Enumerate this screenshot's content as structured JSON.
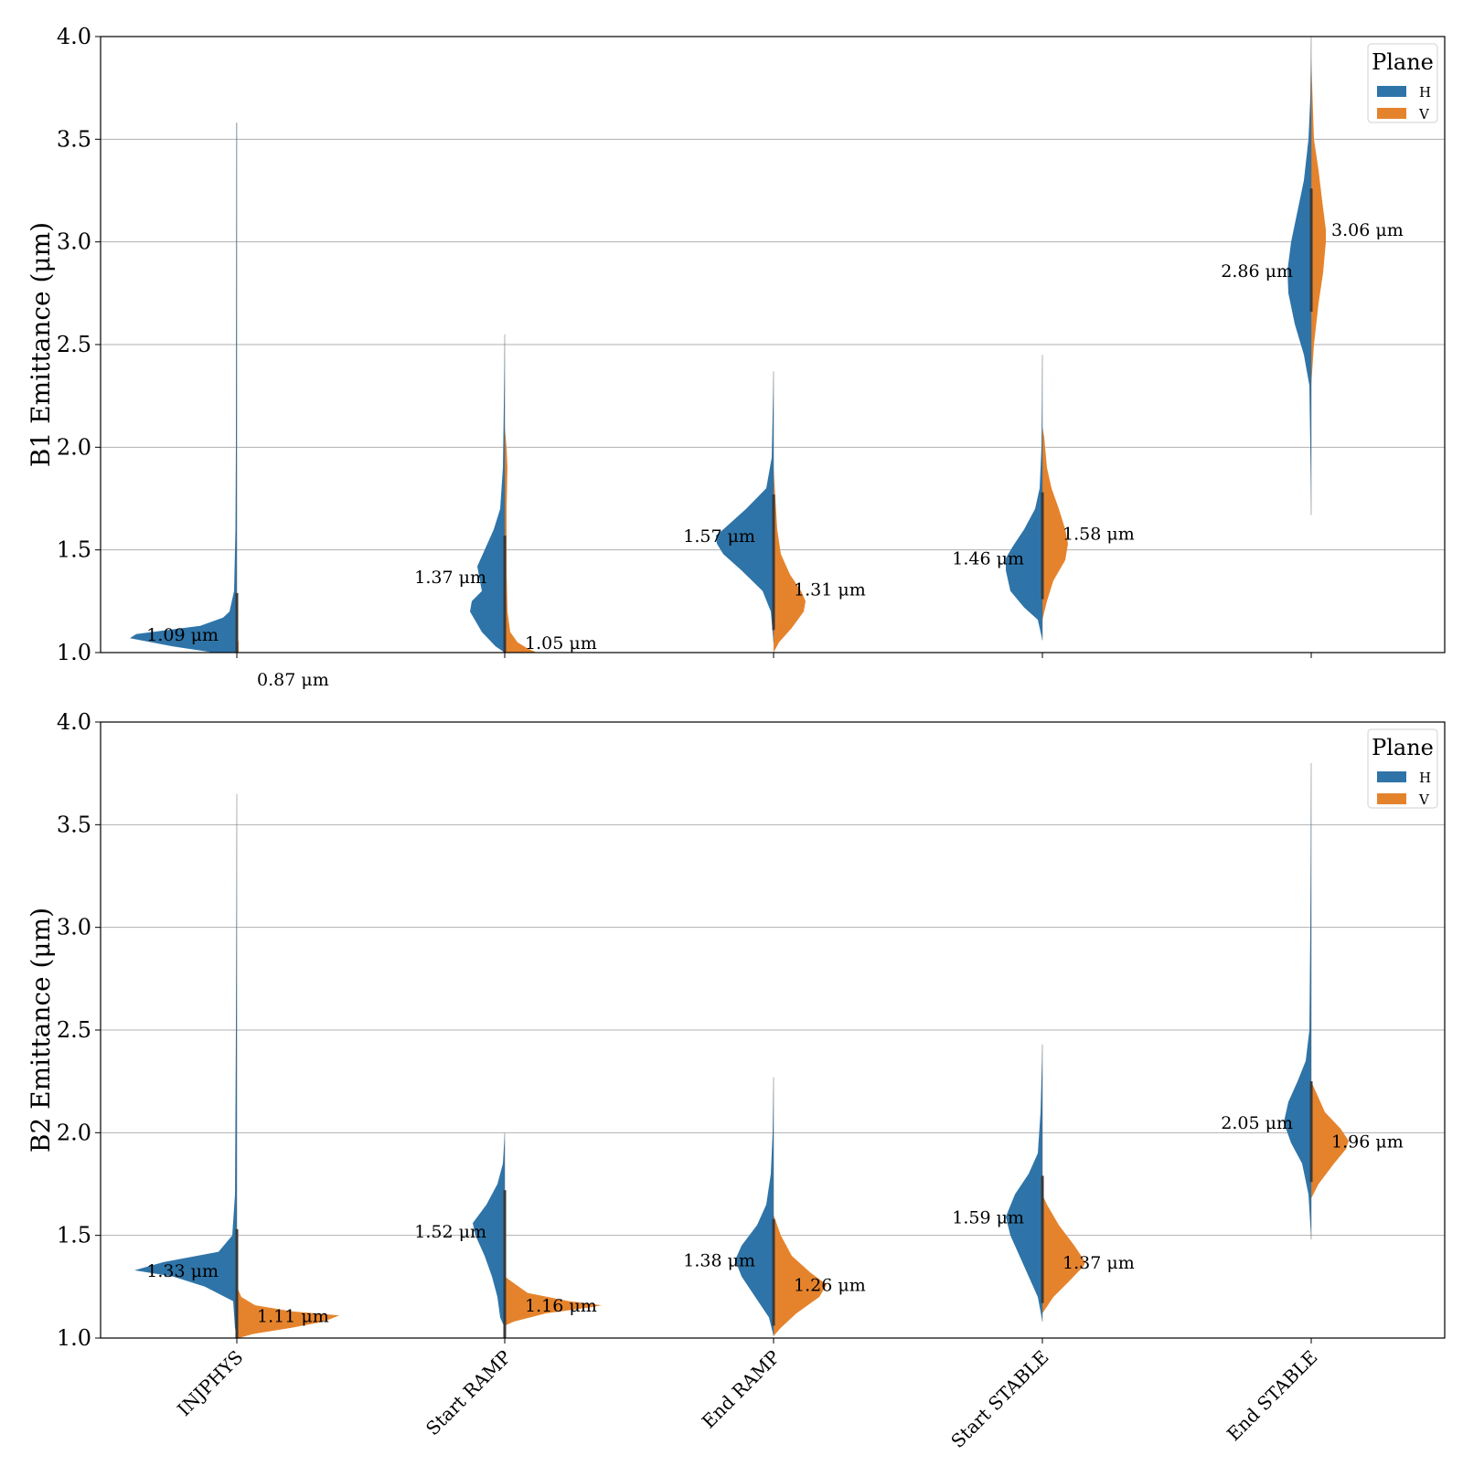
{
  "chart_data": [
    {
      "type": "violin",
      "ylabel": "B1 Emittance (μm)",
      "ylim": [
        1.0,
        4.0
      ],
      "yticks": [
        "1.0",
        "1.5",
        "2.0",
        "2.5",
        "3.0",
        "3.5",
        "4.0"
      ],
      "grid": true,
      "legend": {
        "title": "Plane",
        "placement": "top-right",
        "entries": [
          "H",
          "V"
        ]
      },
      "categories": [
        "INJPHYS",
        "Start RAMP",
        "End RAMP",
        "Start STABLE",
        "End STABLE"
      ],
      "series": [
        {
          "name": "H",
          "color": "#2e74a8",
          "medians": [
            1.09,
            1.37,
            1.57,
            1.46,
            2.86
          ],
          "median_labels": [
            "1.09 μm",
            "1.37 μm",
            "1.57 μm",
            "1.46 μm",
            "2.86 μm"
          ],
          "range": [
            [
              1.0,
              3.58
            ],
            [
              1.0,
              2.55
            ],
            [
              1.05,
              2.37
            ],
            [
              1.06,
              2.45
            ],
            [
              1.67,
              4.0
            ]
          ]
        },
        {
          "name": "V",
          "color": "#e5832d",
          "medians": [
            0.87,
            1.05,
            1.31,
            1.58,
            3.06
          ],
          "median_labels": [
            "0.87 μm",
            "1.05 μm",
            "1.31 μm",
            "1.58 μm",
            "3.06 μm"
          ],
          "range": [
            [
              0.6,
              1.1
            ],
            [
              1.0,
              2.1
            ],
            [
              1.0,
              1.9
            ],
            [
              1.16,
              2.1
            ],
            [
              2.3,
              3.9
            ]
          ]
        }
      ]
    },
    {
      "type": "violin",
      "ylabel": "B2 Emittance (μm)",
      "ylim": [
        1.0,
        4.0
      ],
      "yticks": [
        "1.0",
        "1.5",
        "2.0",
        "2.5",
        "3.0",
        "3.5",
        "4.0"
      ],
      "grid": true,
      "legend": {
        "title": "Plane",
        "placement": "top-right",
        "entries": [
          "H",
          "V"
        ]
      },
      "categories": [
        "INJPHYS",
        "Start RAMP",
        "End RAMP",
        "Start STABLE",
        "End STABLE"
      ],
      "series": [
        {
          "name": "H",
          "color": "#2e74a8",
          "medians": [
            1.33,
            1.52,
            1.38,
            1.59,
            2.05
          ],
          "median_labels": [
            "1.33 μm",
            "1.52 μm",
            "1.38 μm",
            "1.59 μm",
            "2.05 μm"
          ],
          "range": [
            [
              1.0,
              3.65
            ],
            [
              1.05,
              2.0
            ],
            [
              1.01,
              2.27
            ],
            [
              1.08,
              2.43
            ],
            [
              1.48,
              3.8
            ]
          ]
        },
        {
          "name": "V",
          "color": "#e5832d",
          "medians": [
            1.11,
            1.16,
            1.26,
            1.37,
            1.96
          ],
          "median_labels": [
            "1.11 μm",
            "1.16 μm",
            "1.26 μm",
            "1.37 μm",
            "1.96 μm"
          ],
          "range": [
            [
              1.0,
              1.25
            ],
            [
              1.06,
              1.3
            ],
            [
              1.01,
              1.6
            ],
            [
              1.12,
              1.65
            ],
            [
              1.68,
              2.2
            ]
          ]
        }
      ]
    }
  ]
}
